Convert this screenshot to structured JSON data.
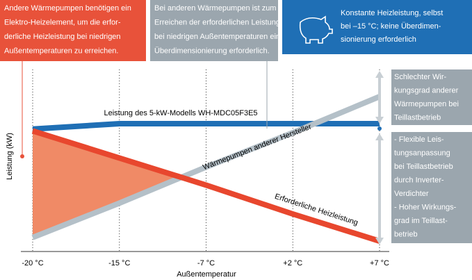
{
  "chart_data": {
    "type": "line",
    "x_label": "Außentemperatur",
    "y_label": "Leistung (kW)",
    "categories": [
      "-20 °C",
      "-15 °C",
      "-7 °C",
      "+2 °C",
      "+7 °C"
    ],
    "ylim": [
      0,
      100
    ],
    "series": [
      {
        "name": "Leistung des 5-kW-Modells WH-MDC05F3E5",
        "color": "#1f6fb5",
        "values": [
          67,
          70,
          70,
          70,
          70
        ]
      },
      {
        "name": "Wärmepumpen anderer Hersteller",
        "color": "#b4c0c8",
        "values": [
          7,
          26,
          46,
          65,
          85
        ]
      },
      {
        "name": "Erforderliche Heizleistung",
        "color": "#e8472e",
        "values": [
          66,
          51,
          36,
          20,
          5
        ]
      }
    ],
    "boxes": [
      {
        "color": "#e8523a",
        "lines": [
          "Andere Wärmepumpen benötigen ein",
          "Elektro-Heizelement, um die erfor-",
          "derliche Heizleistung bei niedrigen",
          "Außentemperaturen zu erreichen."
        ]
      },
      {
        "color": "#9ba6ae",
        "lines": [
          "Bei anderen Wärmepumpen ist zum",
          "Erreichen der erforderlichen Leistung",
          "bei niedrigen Außentemperaturen eine",
          "Überdimensionierung erforderlich."
        ]
      },
      {
        "color": "#1f6fb5",
        "lines": [
          "Konstante Heizleistung, selbst",
          "bei –15 °C; keine Überdimen-",
          "sionierung erforderlich"
        ]
      }
    ],
    "side_notes": [
      {
        "lines": [
          "Schlechter Wir-",
          "kungsgrad anderer",
          "Wärmepumpen bei",
          "Teillastbetrieb"
        ]
      },
      {
        "lines": [
          "- Flexible Leis-",
          "  tungsanpassung",
          "  bei Teillastbetrieb",
          "  durch Inverter-",
          "  Verdichter",
          "- Hoher Wirkungs-",
          "  grad im Teillast-",
          "  betrieb"
        ]
      }
    ]
  }
}
